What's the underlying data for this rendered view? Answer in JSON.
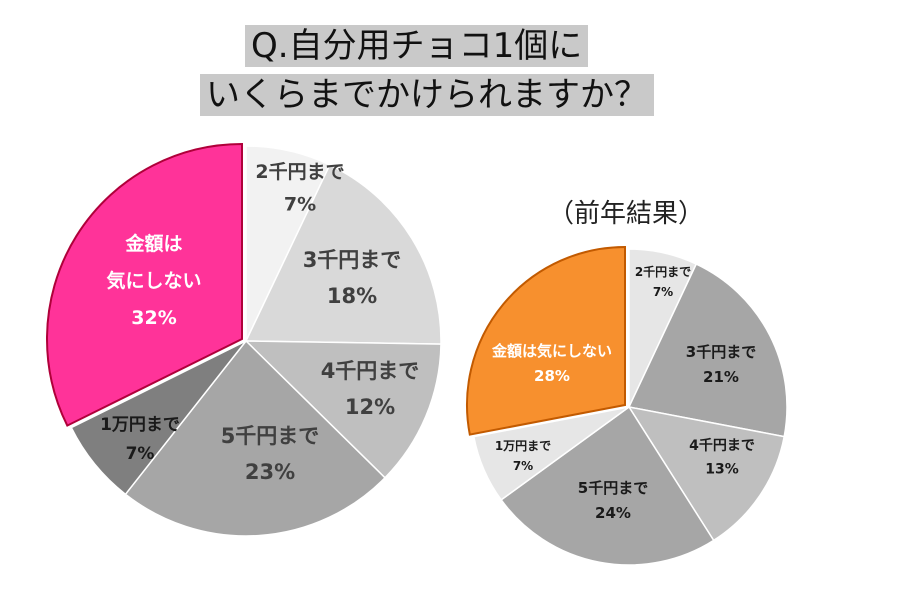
{
  "title": {
    "line1": "Q.自分用チョコ1個に",
    "line2": "いくらまでかけられますか？"
  },
  "chart_data": [
    {
      "type": "pie",
      "title": "",
      "slices": [
        {
          "label": "2千円まで",
          "value": 7,
          "display": "7%",
          "color": "#f2f2f2"
        },
        {
          "label": "3千円まで",
          "value": 18,
          "display": "18%",
          "color": "#d9d9d9"
        },
        {
          "label": "4千円まで",
          "value": 12,
          "display": "12%",
          "color": "#bfbfbf"
        },
        {
          "label": "5千円まで",
          "value": 23,
          "display": "23%",
          "color": "#a6a6a6"
        },
        {
          "label": "1万円まで",
          "value": 7,
          "display": "7%",
          "color": "#7f7f7f"
        },
        {
          "label": "金額は気にしない",
          "label_lines": [
            "金額は",
            "気にしない"
          ],
          "value": 32,
          "display": "32%",
          "color": "#ff3399"
        }
      ]
    },
    {
      "type": "pie",
      "title": "（前年結果）",
      "slices": [
        {
          "label": "2千円まで",
          "value": 7,
          "display": "7%",
          "color": "#e6e6e6"
        },
        {
          "label": "3千円まで",
          "value": 21,
          "display": "21%",
          "color": "#a6a6a6"
        },
        {
          "label": "4千円まで",
          "value": 13,
          "display": "13%",
          "color": "#bfbfbf"
        },
        {
          "label": "5千円まで",
          "value": 24,
          "display": "24%",
          "color": "#a6a6a6"
        },
        {
          "label": "1万円まで",
          "value": 7,
          "display": "7%",
          "color": "#e6e6e6"
        },
        {
          "label": "金額は気にしない",
          "label_lines": [
            "金額は気にしない"
          ],
          "value": 28,
          "display": "28%",
          "color": "#f7902e"
        }
      ]
    }
  ]
}
